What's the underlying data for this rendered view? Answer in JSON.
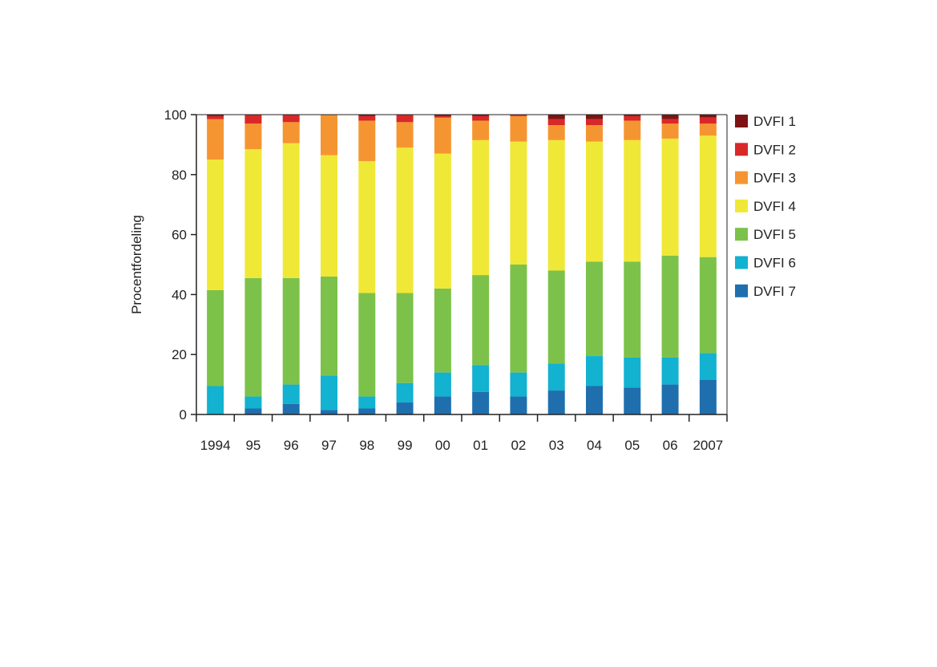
{
  "chart_data": {
    "type": "bar",
    "stacked": true,
    "ylabel": "Procentfordeling",
    "xlabel": "",
    "ylim": [
      0,
      100
    ],
    "yticks": [
      0,
      20,
      40,
      60,
      80,
      100
    ],
    "grid": false,
    "legend_position": "right",
    "categories": [
      "1994",
      "95",
      "96",
      "97",
      "98",
      "99",
      "00",
      "01",
      "02",
      "03",
      "04",
      "05",
      "06",
      "2007"
    ],
    "series": [
      {
        "name": "DVFI 7",
        "color": "#1f6fae",
        "values": [
          0,
          2,
          3.5,
          1.5,
          2,
          4,
          6,
          7.5,
          6,
          8,
          9.5,
          9,
          10,
          11.5
        ]
      },
      {
        "name": "DVFI 6",
        "color": "#12b2d0",
        "values": [
          9.5,
          4,
          6.5,
          11.5,
          4,
          6.5,
          8,
          9,
          8,
          9,
          10,
          10,
          9,
          9
        ]
      },
      {
        "name": "DVFI 5",
        "color": "#7cc24a",
        "values": [
          32,
          39.5,
          35.5,
          33,
          34.5,
          30,
          28,
          30,
          36,
          31,
          31.5,
          32,
          34,
          32
        ]
      },
      {
        "name": "DVFI 4",
        "color": "#f0e836",
        "values": [
          43.5,
          43,
          45,
          40.5,
          44,
          48.5,
          45,
          45,
          41,
          43.5,
          40,
          40.5,
          39,
          40.5
        ]
      },
      {
        "name": "DVFI 3",
        "color": "#f59532",
        "values": [
          13.5,
          8.5,
          7,
          13.5,
          13.5,
          8.5,
          12,
          6.5,
          8.5,
          5,
          5.5,
          6.5,
          5,
          4
        ]
      },
      {
        "name": "DVFI 2",
        "color": "#d92828",
        "values": [
          1,
          3,
          2.5,
          0,
          1.5,
          2.5,
          0.5,
          1.5,
          0.5,
          2,
          2,
          1.5,
          1.5,
          2
        ]
      },
      {
        "name": "DVFI 1",
        "color": "#7d1414",
        "values": [
          0.5,
          0,
          0,
          0,
          0.5,
          0,
          0.5,
          0.5,
          0,
          1.5,
          1.5,
          0.5,
          1.5,
          1
        ]
      }
    ],
    "legend_order": [
      "DVFI 1",
      "DVFI 2",
      "DVFI 3",
      "DVFI 4",
      "DVFI 5",
      "DVFI 6",
      "DVFI 7"
    ]
  }
}
